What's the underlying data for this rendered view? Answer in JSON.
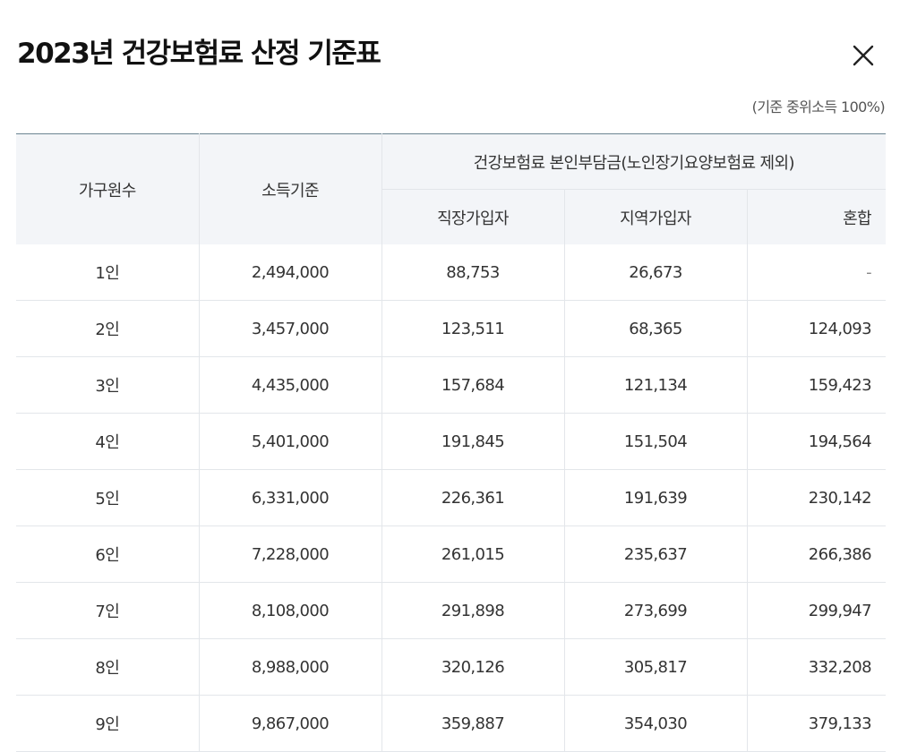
{
  "modal": {
    "title": "2023년 건강보험료 산정 기준표",
    "caption": "(기준 중위소득 100%)"
  },
  "table": {
    "headers": {
      "household": "가구원수",
      "income": "소득기준",
      "group": "건강보험료 본인부담금(노인장기요양보험료 제외)",
      "employee": "직장가입자",
      "regional": "지역가입자",
      "mixed": "혼합"
    },
    "rows": [
      {
        "household": "1인",
        "income": "2,494,000",
        "employee": "88,753",
        "regional": "26,673",
        "mixed": "-"
      },
      {
        "household": "2인",
        "income": "3,457,000",
        "employee": "123,511",
        "regional": "68,365",
        "mixed": "124,093"
      },
      {
        "household": "3인",
        "income": "4,435,000",
        "employee": "157,684",
        "regional": "121,134",
        "mixed": "159,423"
      },
      {
        "household": "4인",
        "income": "5,401,000",
        "employee": "191,845",
        "regional": "151,504",
        "mixed": "194,564"
      },
      {
        "household": "5인",
        "income": "6,331,000",
        "employee": "226,361",
        "regional": "191,639",
        "mixed": "230,142"
      },
      {
        "household": "6인",
        "income": "7,228,000",
        "employee": "261,015",
        "regional": "235,637",
        "mixed": "266,386"
      },
      {
        "household": "7인",
        "income": "8,108,000",
        "employee": "291,898",
        "regional": "273,699",
        "mixed": "299,947"
      },
      {
        "household": "8인",
        "income": "8,988,000",
        "employee": "320,126",
        "regional": "305,817",
        "mixed": "332,208"
      },
      {
        "household": "9인",
        "income": "9,867,000",
        "employee": "359,887",
        "regional": "354,030",
        "mixed": "379,133"
      }
    ]
  },
  "icons": {
    "close": "close-icon"
  },
  "colors": {
    "header_bg": "#f3f5f8",
    "top_border": "#6b8592",
    "grid_line": "#e3e6ea",
    "text": "#333333"
  }
}
